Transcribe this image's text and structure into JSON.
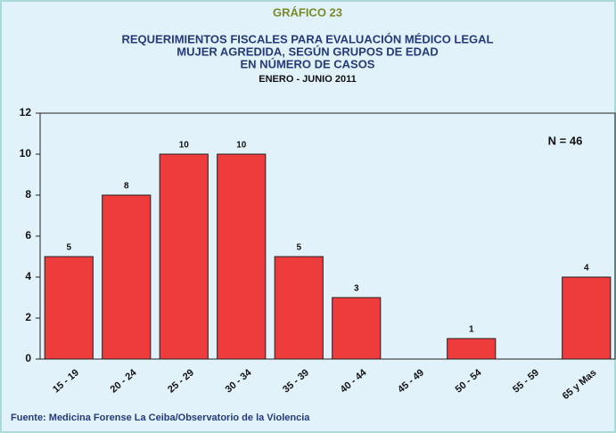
{
  "chart_data": {
    "type": "bar",
    "supertitle": "GRÁFICO 23",
    "title": [
      "REQUERIMIENTOS FISCALES PARA EVALUACIÓN MÉDICO LEGAL",
      "MUJER AGREDIDA, SEGÚN GRUPOS DE EDAD",
      "EN NÚMERO DE CASOS"
    ],
    "subtitle": "ENERO - JUNIO 2011",
    "annotation": "N = 46",
    "source": "Fuente: Medicina Forense La Ceiba/Observatorio de la Violencia",
    "categories": [
      "15 - 19",
      "20 - 24",
      "25 - 29",
      "30 - 34",
      "35 - 39",
      "40 - 44",
      "45 - 49",
      "50 - 54",
      "55 - 59",
      "65 y Mas"
    ],
    "values": [
      5,
      8,
      10,
      10,
      5,
      3,
      null,
      1,
      null,
      4
    ],
    "color": "#ee3b3b",
    "ylim": [
      0,
      12
    ],
    "yticks": [
      0,
      2,
      4,
      6,
      8,
      10,
      12
    ],
    "grid": false
  }
}
